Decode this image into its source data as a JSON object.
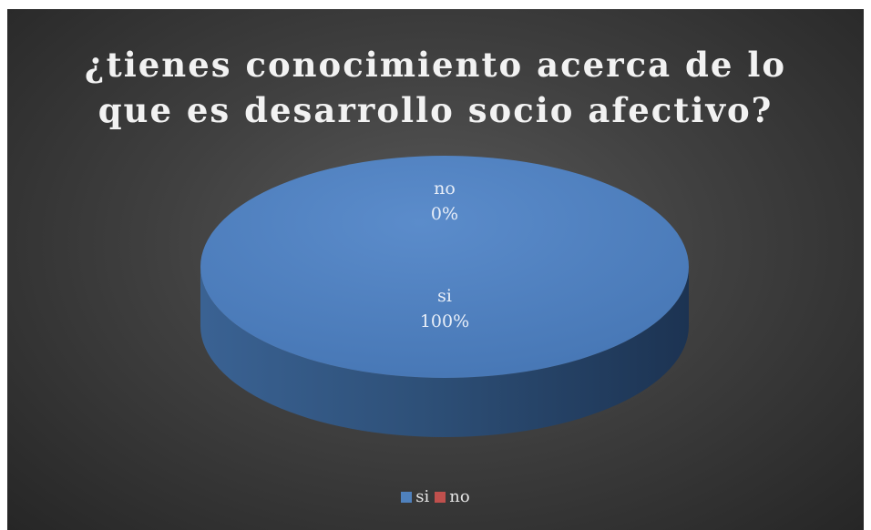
{
  "chart_data": {
    "type": "pie",
    "title": "¿tienes conocimiento acerca de lo que es desarrollo socio afectivo?",
    "title_lines": [
      "¿tienes conocimiento acerca de lo",
      "que es desarrollo socio afectivo?"
    ],
    "categories": [
      "si",
      "no"
    ],
    "values": [
      100,
      0
    ],
    "data_labels": [
      {
        "category": "si",
        "percent": "100%"
      },
      {
        "category": "no",
        "percent": "0%"
      }
    ],
    "colors": {
      "si": "#4f81bd",
      "no": "#c0504d"
    },
    "style": "3d",
    "legend": [
      "si",
      "no"
    ],
    "legend_position": "bottom"
  }
}
